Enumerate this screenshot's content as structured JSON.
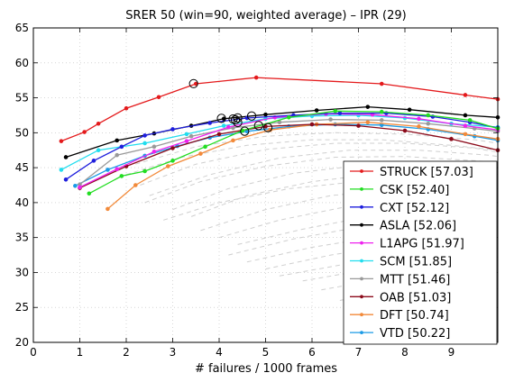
{
  "chart_data": {
    "type": "line",
    "title": "SRER 50 (win=90, weighted average) – IPR (29)",
    "xlabel": "# failures / 1000 frames",
    "ylabel": "",
    "xlim": [
      0,
      10
    ],
    "ylim": [
      20,
      65
    ],
    "xticks": [
      0,
      1,
      2,
      3,
      4,
      5,
      6,
      7,
      8,
      9
    ],
    "yticks": [
      20,
      25,
      30,
      35,
      40,
      45,
      50,
      55,
      60,
      65
    ],
    "grid": true,
    "legend_position": "bottom-right",
    "series": [
      {
        "name": "STRUCK  [57.03]",
        "color": "#e41a1c",
        "x": [
          0.6,
          1.1,
          1.4,
          2.0,
          2.7,
          3.5,
          4.8,
          7.5,
          9.3,
          10.0
        ],
        "y": [
          48.8,
          50.1,
          51.3,
          53.5,
          55.1,
          57.0,
          57.9,
          57.0,
          55.4,
          54.8
        ],
        "marker": {
          "x": 3.45,
          "y": 57.03
        }
      },
      {
        "name": "CSK  [52.40]",
        "color": "#22dd22",
        "x": [
          1.2,
          1.9,
          2.4,
          3.0,
          3.7,
          4.5,
          5.5,
          6.5,
          7.5,
          8.5,
          9.4,
          10.0
        ],
        "y": [
          41.3,
          43.8,
          44.5,
          46.0,
          48.0,
          50.3,
          52.2,
          53.1,
          53.0,
          52.5,
          51.8,
          50.6
        ],
        "marker": {
          "x": 4.7,
          "y": 52.4
        }
      },
      {
        "name": "CXT  [52.12]",
        "color": "#1f1fdd",
        "x": [
          0.7,
          1.3,
          1.9,
          2.4,
          3.0,
          3.8,
          4.6,
          5.6,
          6.6,
          7.6,
          8.6,
          9.4,
          10.0
        ],
        "y": [
          43.3,
          46.0,
          48.0,
          49.6,
          50.5,
          51.4,
          52.1,
          52.5,
          52.8,
          52.8,
          52.3,
          51.5,
          50.7
        ],
        "marker": {
          "x": 4.4,
          "y": 52.12
        }
      },
      {
        "name": "ASLA  [52.06]",
        "color": "#000000",
        "x": [
          0.7,
          1.8,
          2.6,
          3.4,
          4.1,
          5.0,
          6.1,
          7.2,
          8.1,
          9.3,
          10.0
        ],
        "y": [
          46.5,
          48.9,
          49.9,
          51.0,
          52.0,
          52.6,
          53.2,
          53.7,
          53.3,
          52.5,
          52.2
        ],
        "marker": {
          "x": 4.05,
          "y": 52.06
        }
      },
      {
        "name": "L1APG  [51.97]",
        "color": "#ee22ee",
        "x": [
          1.0,
          1.8,
          2.6,
          3.3,
          4.2,
          5.2,
          6.3,
          7.3,
          8.3,
          9.3,
          10.0
        ],
        "y": [
          42.2,
          44.8,
          47.3,
          48.8,
          50.8,
          52.2,
          52.7,
          52.6,
          52.0,
          51.0,
          50.4
        ],
        "marker": {
          "x": 4.3,
          "y": 51.97
        }
      },
      {
        "name": "SCM  [51.85]",
        "color": "#22ddee",
        "x": [
          0.6,
          1.4,
          2.4,
          3.3,
          4.1,
          5.0,
          6.0,
          7.0,
          8.0,
          9.0,
          10.0
        ],
        "y": [
          44.7,
          47.5,
          48.5,
          49.8,
          51.0,
          52.0,
          52.4,
          52.5,
          52.1,
          51.3,
          50.8
        ],
        "marker": {
          "x": 4.35,
          "y": 51.85
        }
      },
      {
        "name": "MTT  [51.46]",
        "color": "#999999",
        "x": [
          1.0,
          1.8,
          2.6,
          3.4,
          4.3,
          5.3,
          6.4,
          7.5,
          8.5,
          9.5,
          10.0
        ],
        "y": [
          42.6,
          46.8,
          48.0,
          49.5,
          50.7,
          51.5,
          51.9,
          51.8,
          51.3,
          50.6,
          50.2
        ],
        "marker": {
          "x": 4.4,
          "y": 51.46
        }
      },
      {
        "name": "OAB  [51.03]",
        "color": "#8b0a1a",
        "x": [
          1.0,
          2.0,
          3.0,
          4.0,
          5.0,
          6.0,
          7.0,
          8.0,
          9.0,
          10.0
        ],
        "y": [
          42.1,
          45.2,
          47.8,
          49.8,
          50.9,
          51.2,
          51.0,
          50.3,
          49.1,
          47.5
        ],
        "marker": {
          "x": 4.85,
          "y": 51.03
        }
      },
      {
        "name": "DFT  [50.74]",
        "color": "#f28a3a",
        "x": [
          1.6,
          2.2,
          2.9,
          3.6,
          4.3,
          5.1,
          6.1,
          7.2,
          8.3,
          9.3,
          10.0
        ],
        "y": [
          39.1,
          42.5,
          45.2,
          47.0,
          48.9,
          50.4,
          51.2,
          51.5,
          50.9,
          49.8,
          49.1
        ],
        "marker": {
          "x": 5.05,
          "y": 50.74
        }
      },
      {
        "name": "VTD  [50.22]",
        "color": "#1c9be6",
        "x": [
          0.9,
          1.6,
          2.4,
          3.1,
          3.8,
          4.6,
          5.5,
          6.5,
          7.5,
          8.5,
          9.5,
          10.0
        ],
        "y": [
          42.4,
          44.7,
          46.7,
          48.1,
          49.3,
          50.2,
          50.9,
          51.2,
          51.1,
          50.5,
          49.5,
          48.9
        ],
        "marker": {
          "x": 4.55,
          "y": 50.22
        }
      }
    ],
    "background_series": [
      {
        "x": [
          2.2,
          3.5,
          5.0,
          6.5,
          8.0,
          9.5,
          10.0
        ],
        "y": [
          45.5,
          48.0,
          49.5,
          50.0,
          49.8,
          49.0,
          48.5
        ]
      },
      {
        "x": [
          2.0,
          3.2,
          4.6,
          6.0,
          7.5,
          9.0,
          10.0
        ],
        "y": [
          44.0,
          46.5,
          48.2,
          49.0,
          49.0,
          48.2,
          47.5
        ]
      },
      {
        "x": [
          2.3,
          3.5,
          5.0,
          6.5,
          8.0,
          9.5,
          10.0
        ],
        "y": [
          42.5,
          45.5,
          47.6,
          48.5,
          48.5,
          47.8,
          47.2
        ]
      },
      {
        "x": [
          2.5,
          3.8,
          5.3,
          6.8,
          8.3,
          9.8,
          10.0
        ],
        "y": [
          41.0,
          44.0,
          46.4,
          47.5,
          47.5,
          46.8,
          46.6
        ]
      },
      {
        "x": [
          2.4,
          3.6,
          5.0,
          6.5,
          8.0,
          9.5,
          10.0
        ],
        "y": [
          40.0,
          43.0,
          45.2,
          46.5,
          46.6,
          46.0,
          45.7
        ]
      },
      {
        "x": [
          3.0,
          4.2,
          5.6,
          7.0,
          8.5,
          10.0
        ],
        "y": [
          39.0,
          42.0,
          44.2,
          45.3,
          45.5,
          45.0
        ]
      },
      {
        "x": [
          3.4,
          4.6,
          6.0,
          7.5,
          9.0,
          10.0
        ],
        "y": [
          38.0,
          41.0,
          43.0,
          44.2,
          44.4,
          44.0
        ]
      },
      {
        "x": [
          2.8,
          4.0,
          5.5,
          7.0,
          8.5,
          10.0
        ],
        "y": [
          37.5,
          40.0,
          42.0,
          43.0,
          43.3,
          43.0
        ]
      },
      {
        "x": [
          3.6,
          5.0,
          6.4,
          8.0,
          9.5,
          10.0
        ],
        "y": [
          36.0,
          39.0,
          41.0,
          42.0,
          42.2,
          42.0
        ]
      },
      {
        "x": [
          4.0,
          5.3,
          6.8,
          8.3,
          10.0
        ],
        "y": [
          35.0,
          37.5,
          39.5,
          40.6,
          40.8
        ]
      },
      {
        "x": [
          4.4,
          5.8,
          7.2,
          8.7,
          10.0
        ],
        "y": [
          34.0,
          36.2,
          38.0,
          39.2,
          39.5
        ]
      },
      {
        "x": [
          4.2,
          5.6,
          7.1,
          8.6,
          10.0
        ],
        "y": [
          32.5,
          34.8,
          36.6,
          37.7,
          38.0
        ]
      },
      {
        "x": [
          4.6,
          6.0,
          7.5,
          9.0,
          10.0
        ],
        "y": [
          31.5,
          33.6,
          35.2,
          36.2,
          36.5
        ]
      },
      {
        "x": [
          5.0,
          6.4,
          7.9,
          9.3,
          10.0
        ],
        "y": [
          30.5,
          32.5,
          34.0,
          34.8,
          35.0
        ]
      },
      {
        "x": [
          5.3,
          6.8,
          8.2,
          9.6,
          10.0
        ],
        "y": [
          29.5,
          31.3,
          32.6,
          33.3,
          33.5
        ]
      },
      {
        "x": [
          5.8,
          7.2,
          8.6,
          10.0
        ],
        "y": [
          28.8,
          30.4,
          31.6,
          32.2
        ]
      },
      {
        "x": [
          6.2,
          7.6,
          9.0,
          10.0
        ],
        "y": [
          27.5,
          29.2,
          30.4,
          30.9
        ]
      },
      {
        "x": [
          6.6,
          8.0,
          9.4,
          10.0
        ],
        "y": [
          26.0,
          27.8,
          29.0,
          29.4
        ]
      },
      {
        "x": [
          7.2,
          8.5,
          9.7,
          10.0
        ],
        "y": [
          24.8,
          26.4,
          27.5,
          27.7
        ]
      }
    ]
  }
}
